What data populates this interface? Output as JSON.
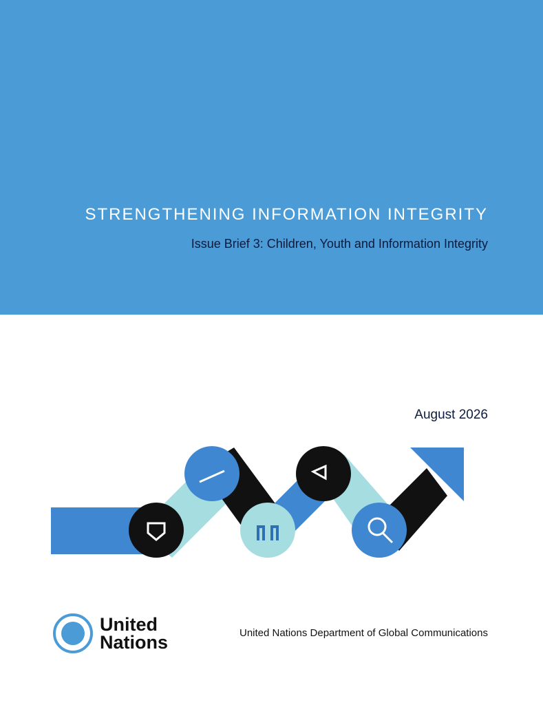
{
  "header": {
    "title": "STRENGTHENING INFORMATION INTEGRITY",
    "subtitle": "Issue Brief 3: Children, Youth and Information Integrity"
  },
  "date": "August 2026",
  "footer": {
    "logo_text_line1": "United",
    "logo_text_line2": "Nations",
    "department": "United Nations Department of Global Communications"
  }
}
